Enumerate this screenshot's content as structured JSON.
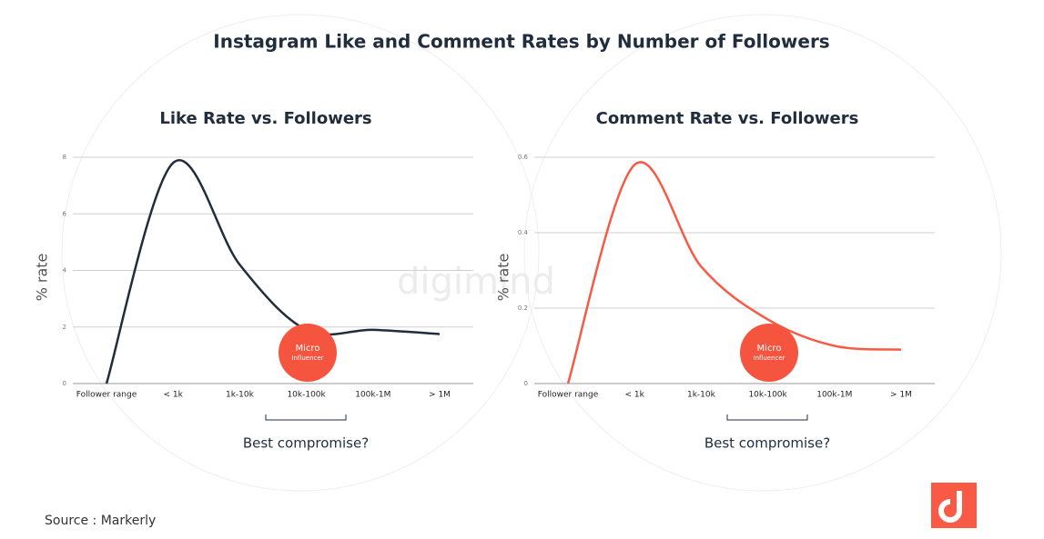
{
  "title": "Instagram Like and Comment Rates by Number of Followers",
  "source": "Source : Markerly",
  "watermark": "digimind",
  "chart_data": [
    {
      "type": "line",
      "title": "Like Rate vs. Followers",
      "ylabel": "% rate",
      "xlabel": "Follower range",
      "categories": [
        null,
        "< 1k",
        "1k-10k",
        "10k-100k",
        "100k-1M",
        "> 1M"
      ],
      "series": [
        {
          "name": "Like rate",
          "color": "#1f2d3d",
          "values": [
            0,
            7.8,
            4.2,
            1.9,
            1.9,
            1.75
          ]
        }
      ],
      "ylim": [
        0,
        8
      ],
      "yticks": [
        0,
        2,
        4,
        6,
        8
      ],
      "grid": true,
      "badge": [
        "Micro",
        "Influencer"
      ],
      "annotation": "Best compromise?"
    },
    {
      "type": "line",
      "title": "Comment Rate vs. Followers",
      "ylabel": "% rate",
      "xlabel": "Follower range",
      "categories": [
        null,
        "< 1k",
        "1k-10k",
        "10k-100k",
        "100k-1M",
        "> 1M"
      ],
      "series": [
        {
          "name": "Comment rate",
          "color": "#f85a46",
          "values": [
            0,
            0.58,
            0.31,
            0.17,
            0.1,
            0.09
          ]
        }
      ],
      "ylim": [
        0,
        0.6
      ],
      "yticks": [
        0,
        0.2,
        0.4,
        0.6
      ],
      "grid": true,
      "badge": [
        "Micro",
        "Influencer"
      ],
      "annotation": "Best compromise?"
    }
  ]
}
